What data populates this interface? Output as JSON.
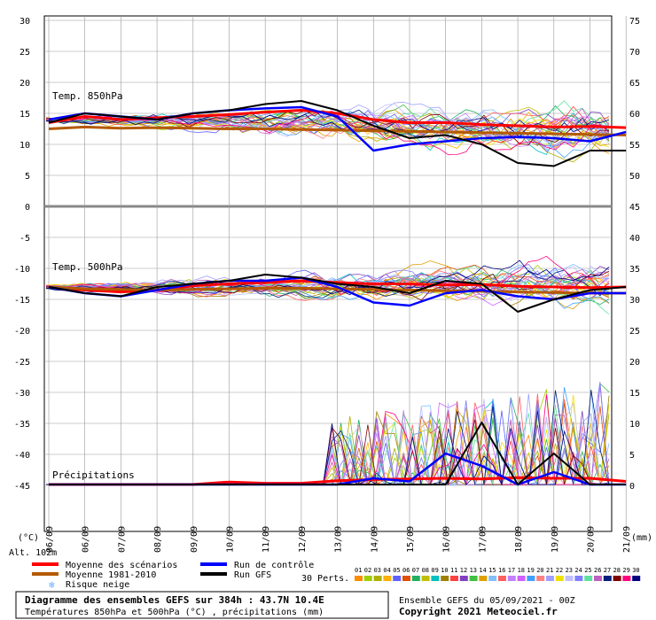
{
  "chart_data": {
    "type": "line",
    "title": "Diagramme des ensembles GEFS sur 384h : 43.7N 10.4E",
    "subtitle": "Températures 850hPa et 500hPa (°C) , précipitations (mm)",
    "ensemble_info": "Ensemble GEFS du 05/09/2021 - 00Z",
    "copyright": "Copyright 2021 Meteociel.fr",
    "altitude": "Alt. 102m",
    "left_axis_unit": "(°C)",
    "right_axis_unit": "(mm)",
    "left_ticks": [
      "30",
      "25",
      "20",
      "15",
      "10",
      "5",
      "0",
      "-5",
      "-10",
      "-15",
      "-20",
      "-25",
      "-30",
      "-35",
      "-40",
      "-45"
    ],
    "right_ticks": [
      "75",
      "70",
      "65",
      "60",
      "55",
      "50",
      "45",
      "40",
      "35",
      "30",
      "25",
      "20",
      "15",
      "10",
      "5",
      "0"
    ],
    "x_labels": [
      "06/09",
      "06/09",
      "07/09",
      "08/09",
      "09/09",
      "10/09",
      "11/09",
      "12/09",
      "13/09",
      "14/09",
      "15/09",
      "16/09",
      "17/09",
      "18/09",
      "19/09",
      "20/09",
      "21/09"
    ],
    "panels": [
      "Temp. 850hPa",
      "Temp. 500hPa",
      "Précipitations"
    ],
    "legend": [
      {
        "name": "Moyenne des scénarios",
        "color": "#ff0000"
      },
      {
        "name": "Moyenne 1981-2010",
        "color": "#b45a00"
      },
      {
        "name": "Risque neige",
        "color": "#66aaff"
      },
      {
        "name": "Run de contrôle",
        "color": "#0000ff"
      },
      {
        "name": "Run GFS",
        "color": "#000000"
      }
    ],
    "perts_label": "30 Perts.",
    "perts": [
      "01",
      "02",
      "03",
      "04",
      "05",
      "06",
      "07",
      "08",
      "09",
      "10",
      "11",
      "12",
      "13",
      "14",
      "15",
      "16",
      "17",
      "18",
      "19",
      "20",
      "21",
      "22",
      "23",
      "24",
      "25",
      "26",
      "27",
      "28",
      "29",
      "30"
    ],
    "pert_colors": [
      "#ff8c00",
      "#a0d000",
      "#b0b000",
      "#ffb000",
      "#6060ff",
      "#e05000",
      "#20b060",
      "#c0c000",
      "#00c0c0",
      "#a08000",
      "#ff4040",
      "#8040c0",
      "#40c040",
      "#e0a000",
      "#80c0ff",
      "#ff6060",
      "#c080ff",
      "#d060ff",
      "#40a0ff",
      "#ff8080",
      "#a0a0ff",
      "#f0e000",
      "#c0c0ff",
      "#8080ff",
      "#60e0a0",
      "#c060c0",
      "#002080",
      "#800000",
      "#ff0080",
      "#000080"
    ],
    "series": [
      {
        "name": "Moyenne des scénarios",
        "panel": "850hPa",
        "x": [
          0,
          1,
          2,
          3,
          4,
          5,
          6,
          7,
          8,
          9,
          10,
          11,
          12,
          13,
          14,
          15,
          16
        ],
        "y": [
          13.5,
          14.5,
          14.0,
          14.3,
          14.5,
          14.8,
          15.2,
          15.5,
          15.0,
          14.0,
          13.5,
          13.5,
          13.2,
          13.0,
          12.8,
          12.9,
          12.7
        ]
      },
      {
        "name": "Moyenne 1981-2010",
        "panel": "850hPa",
        "x": [
          0,
          1,
          2,
          3,
          4,
          5,
          6,
          7,
          8,
          9,
          10,
          11,
          12,
          13,
          14,
          15,
          16
        ],
        "y": [
          12.5,
          12.8,
          12.6,
          12.7,
          12.6,
          12.5,
          12.5,
          12.4,
          12.3,
          12.2,
          12.1,
          12.0,
          11.9,
          11.8,
          11.7,
          11.6,
          11.5
        ]
      },
      {
        "name": "Run de contrôle",
        "panel": "850hPa",
        "x": [
          0,
          1,
          2,
          3,
          4,
          5,
          6,
          7,
          8,
          9,
          10,
          11,
          12,
          13,
          14,
          15,
          16
        ],
        "y": [
          14.0,
          15.0,
          14.5,
          14.0,
          15.0,
          15.5,
          15.8,
          16.0,
          14.5,
          9.0,
          10.0,
          10.5,
          11.0,
          11.2,
          11.0,
          10.5,
          12.0
        ]
      },
      {
        "name": "Run GFS",
        "panel": "850hPa",
        "x": [
          0,
          1,
          2,
          3,
          4,
          5,
          6,
          7,
          8,
          9,
          10,
          11,
          12,
          13,
          14,
          15,
          16
        ],
        "y": [
          13.5,
          15.0,
          14.5,
          14.0,
          15.0,
          15.5,
          16.5,
          17.0,
          15.5,
          13.0,
          11.0,
          11.5,
          10.0,
          7.0,
          6.5,
          9.0,
          9.0
        ]
      },
      {
        "name": "Moyenne des scénarios",
        "panel": "500hPa",
        "x": [
          0,
          1,
          2,
          3,
          4,
          5,
          6,
          7,
          8,
          9,
          10,
          11,
          12,
          13,
          14,
          15,
          16
        ],
        "y": [
          -13.0,
          -13.5,
          -13.8,
          -13.5,
          -12.8,
          -12.5,
          -12.3,
          -12.0,
          -12.3,
          -12.5,
          -12.5,
          -12.7,
          -12.6,
          -12.9,
          -13.0,
          -13.1,
          -13.0
        ]
      },
      {
        "name": "Moyenne 1981-2010",
        "panel": "500hPa",
        "x": [
          0,
          1,
          2,
          3,
          4,
          5,
          6,
          7,
          8,
          9,
          10,
          11,
          12,
          13,
          14,
          15,
          16
        ],
        "y": [
          -13.0,
          -13.3,
          -13.4,
          -13.5,
          -13.4,
          -13.3,
          -13.2,
          -13.2,
          -13.3,
          -13.4,
          -13.5,
          -13.6,
          -13.7,
          -13.8,
          -13.9,
          -14.0,
          -14.0
        ]
      },
      {
        "name": "Run de contrôle",
        "panel": "500hPa",
        "x": [
          0,
          1,
          2,
          3,
          4,
          5,
          6,
          7,
          8,
          9,
          10,
          11,
          12,
          13,
          14,
          15,
          16
        ],
        "y": [
          -13.0,
          -14.0,
          -14.5,
          -13.5,
          -12.5,
          -12.0,
          -12.0,
          -11.5,
          -13.0,
          -15.5,
          -16.0,
          -14.0,
          -13.5,
          -14.5,
          -15.0,
          -14.0,
          -14.0
        ]
      },
      {
        "name": "Run GFS",
        "panel": "500hPa",
        "x": [
          0,
          1,
          2,
          3,
          4,
          5,
          6,
          7,
          8,
          9,
          10,
          11,
          12,
          13,
          14,
          15,
          16
        ],
        "y": [
          -13.0,
          -14.0,
          -14.5,
          -13.0,
          -12.5,
          -12.0,
          -11.0,
          -11.5,
          -12.5,
          -13.0,
          -14.0,
          -12.0,
          -12.5,
          -17.0,
          -15.0,
          -13.5,
          -13.0
        ]
      },
      {
        "name": "Moyenne des scénarios",
        "panel": "precip",
        "x": [
          0,
          1,
          2,
          3,
          4,
          5,
          6,
          7,
          8,
          9,
          10,
          11,
          12,
          13,
          14,
          15,
          16
        ],
        "y": [
          0,
          0,
          0,
          0,
          0,
          0.4,
          0.2,
          0.2,
          0.6,
          0.8,
          0.9,
          1.0,
          0.9,
          1.1,
          1.0,
          1.0,
          0.5
        ]
      },
      {
        "name": "Run de contrôle",
        "panel": "precip",
        "x": [
          0,
          1,
          2,
          3,
          4,
          5,
          6,
          7,
          8,
          9,
          10,
          11,
          12,
          13,
          14,
          15,
          16
        ],
        "y": [
          0,
          0,
          0,
          0,
          0,
          0,
          0,
          0,
          0,
          1.0,
          0.5,
          5.0,
          3.0,
          0,
          2.0,
          0,
          0
        ]
      },
      {
        "name": "Run GFS",
        "panel": "precip",
        "x": [
          0,
          1,
          2,
          3,
          4,
          5,
          6,
          7,
          8,
          9,
          10,
          11,
          12,
          13,
          14,
          15,
          16
        ],
        "y": [
          0,
          0,
          0,
          0,
          0,
          0,
          0,
          0,
          0,
          0,
          0,
          0,
          10.0,
          0,
          5.0,
          0,
          0
        ]
      }
    ]
  }
}
